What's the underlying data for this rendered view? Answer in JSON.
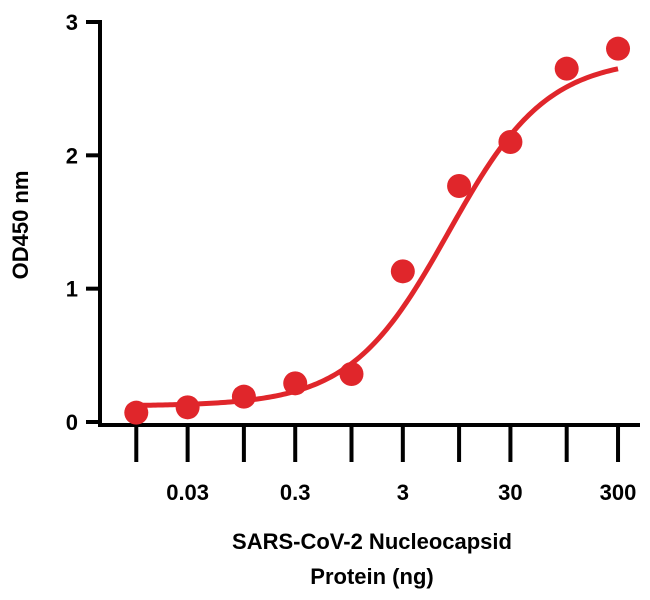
{
  "chart_data": {
    "type": "scatter",
    "title": "",
    "xlabel_lines": [
      "SARS-CoV-2 Nucleocapsid",
      "Protein (ng)"
    ],
    "ylabel": "OD450 nm",
    "xscale": "log10",
    "xlim": [
      0.0046,
      460
    ],
    "ylim": [
      0,
      3
    ],
    "x_ticks": [
      0.01,
      0.03,
      0.1,
      0.3,
      1,
      3,
      10,
      30,
      100,
      300
    ],
    "x_tick_labels": [
      {
        "value": 0.03,
        "label": "0.03"
      },
      {
        "value": 0.3,
        "label": "0.3"
      },
      {
        "value": 3,
        "label": "3"
      },
      {
        "value": 30,
        "label": "30"
      },
      {
        "value": 300,
        "label": "300"
      }
    ],
    "y_ticks": [
      {
        "value": 0,
        "label": "0"
      },
      {
        "value": 1,
        "label": "1"
      },
      {
        "value": 2,
        "label": "2"
      },
      {
        "value": 3,
        "label": "3"
      }
    ],
    "series": [
      {
        "name": "OD450",
        "color": "#e0262b",
        "points": [
          {
            "x": 0.01,
            "y": 0.07
          },
          {
            "x": 0.03,
            "y": 0.11
          },
          {
            "x": 0.1,
            "y": 0.19
          },
          {
            "x": 0.3,
            "y": 0.29
          },
          {
            "x": 1,
            "y": 0.36
          },
          {
            "x": 3,
            "y": 1.13
          },
          {
            "x": 10,
            "y": 1.77
          },
          {
            "x": 30,
            "y": 2.1
          },
          {
            "x": 100,
            "y": 2.65
          },
          {
            "x": 300,
            "y": 2.8
          }
        ],
        "fit": {
          "model": "4PL",
          "bottom": 0.12,
          "top": 2.73,
          "ec50": 8,
          "hill": 0.95
        }
      }
    ]
  }
}
